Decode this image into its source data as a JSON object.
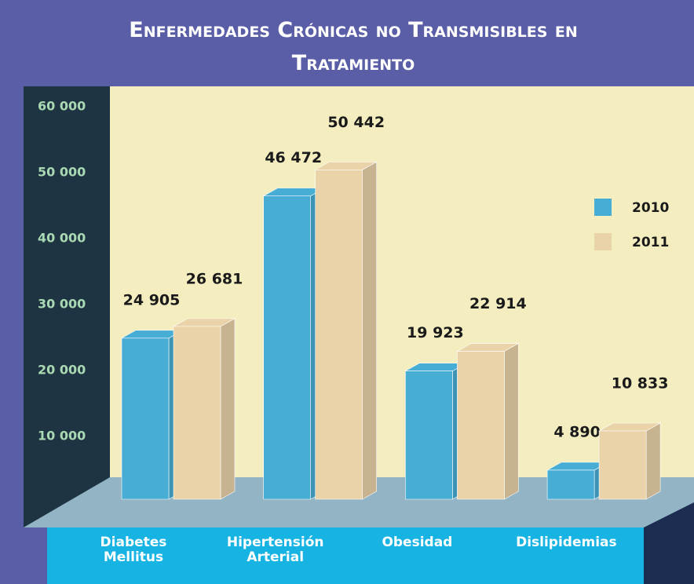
{
  "chart_data": {
    "type": "bar3d",
    "title": "Enfermedades Crónicas no Transmisibles en Tratamiento",
    "categories": [
      "Diabetes Mellitus",
      "Hipertensión Arterial",
      "Obesidad",
      "Dislipidemias"
    ],
    "series": [
      {
        "name": "2010",
        "color": "#47add5",
        "values": [
          24905,
          46472,
          19923,
          4890
        ],
        "value_labels": [
          "24 905",
          "46 472",
          "19 923",
          "4 890"
        ]
      },
      {
        "name": "2011",
        "color": "#ead3a8",
        "values": [
          26681,
          50442,
          22914,
          10833
        ],
        "value_labels": [
          "26 681",
          "50 442",
          "22 914",
          "10 833"
        ]
      }
    ],
    "ylim": [
      0,
      60000
    ],
    "yticks": [
      {
        "value": 10000,
        "label": "10 000"
      },
      {
        "value": 20000,
        "label": "20 000"
      },
      {
        "value": 30000,
        "label": "30 000"
      },
      {
        "value": 40000,
        "label": "40 000"
      },
      {
        "value": 50000,
        "label": "50 000"
      },
      {
        "value": 60000,
        "label": "60 000"
      }
    ],
    "legend": "right"
  }
}
